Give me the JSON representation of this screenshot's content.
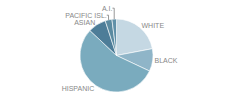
{
  "chart_data": {
    "type": "pie",
    "categories": [
      "WHITE",
      "BLACK",
      "HISPANIC",
      "ASIAN",
      "PACIFIC ISL.",
      "A.I."
    ],
    "values": [
      22,
      10,
      55,
      8,
      3,
      2
    ],
    "colors": [
      "#c5d8e3",
      "#8fb5c8",
      "#7aabbe",
      "#4d7d98",
      "#5a8aa0",
      "#6090a8"
    ]
  }
}
